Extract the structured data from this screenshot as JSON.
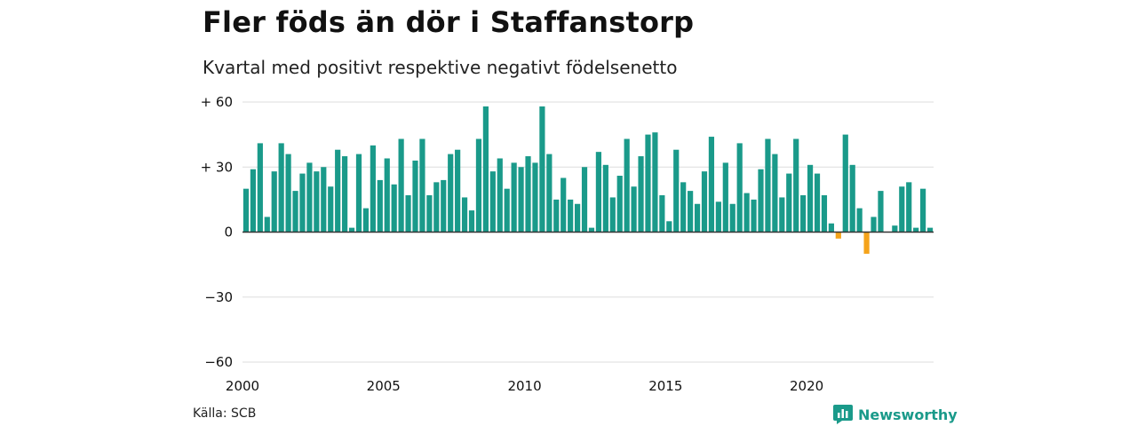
{
  "chart_data": {
    "type": "bar",
    "title": "Fler föds än dör i Staffanstorp",
    "subtitle": "Kvartal med positivt respektive negativt födelsenetto",
    "source": "Källa: SCB",
    "brand": "Newsworthy",
    "ylim": [
      -60,
      60
    ],
    "y_ticks": [
      {
        "value": 60,
        "label": "+ 60"
      },
      {
        "value": 30,
        "label": "+ 30"
      },
      {
        "value": 0,
        "label": "0"
      },
      {
        "value": -30,
        "label": "−30"
      },
      {
        "value": -60,
        "label": "−60"
      }
    ],
    "x_ticks": [
      {
        "year": 2000,
        "label": "2000"
      },
      {
        "year": 2005,
        "label": "2005"
      },
      {
        "year": 2010,
        "label": "2010"
      },
      {
        "year": 2015,
        "label": "2015"
      },
      {
        "year": 2020,
        "label": "2020"
      }
    ],
    "start_year": 2000,
    "grid": true,
    "colors": {
      "positive": "#1a9a8a",
      "negative": "#f5a31a",
      "grid": "#dddddd",
      "axis": "#333333"
    },
    "values": [
      20,
      29,
      41,
      7,
      28,
      41,
      36,
      19,
      27,
      32,
      28,
      30,
      21,
      38,
      35,
      2,
      36,
      11,
      40,
      24,
      34,
      22,
      43,
      17,
      33,
      43,
      17,
      23,
      24,
      36,
      38,
      16,
      10,
      43,
      58,
      28,
      34,
      20,
      32,
      30,
      35,
      32,
      58,
      36,
      15,
      25,
      15,
      13,
      30,
      2,
      37,
      31,
      16,
      26,
      43,
      21,
      35,
      45,
      46,
      17,
      5,
      38,
      23,
      19,
      13,
      28,
      44,
      14,
      32,
      13,
      41,
      18,
      15,
      29,
      43,
      36,
      16,
      27,
      43,
      17,
      31,
      27,
      17,
      4,
      -3,
      45,
      31,
      11,
      -10,
      7,
      19,
      0,
      3,
      21,
      23,
      2,
      20,
      2
    ]
  }
}
